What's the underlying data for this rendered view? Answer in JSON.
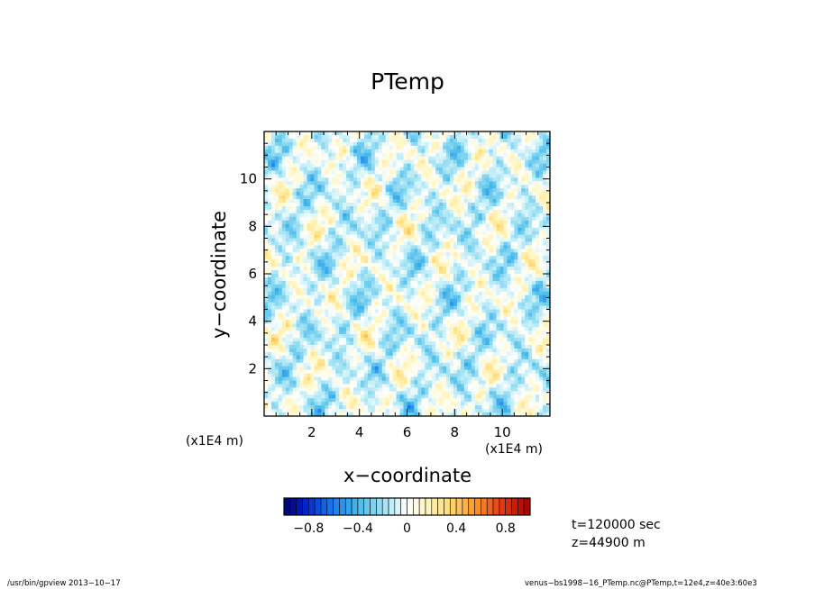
{
  "chart_data": {
    "type": "heatmap",
    "title": "PTemp",
    "xlabel": "x−coordinate",
    "ylabel": "y−coordinate",
    "x_multiplier": "(x1E4 m)",
    "y_multiplier": "(x1E4 m)",
    "xlim": [
      0,
      12
    ],
    "ylim": [
      0,
      12
    ],
    "x_ticks": [
      "2",
      "4",
      "6",
      "8",
      "10"
    ],
    "y_ticks": [
      "2",
      "4",
      "6",
      "8",
      "10"
    ],
    "colorbar": {
      "range": [
        -1.0,
        1.0
      ],
      "tick_labels": [
        "−0.8",
        "−0.4",
        "0",
        "0.4",
        "0.8"
      ],
      "tick_values": [
        -0.8,
        -0.4,
        0,
        0.4,
        0.8
      ]
    },
    "annotations": {
      "time": "t=120000 sec",
      "height": "z=44900 m"
    }
  },
  "footer": {
    "left": "/usr/bin/gpview   2013−10−17",
    "right": "venus−bs1998−16_PTemp.nc@PTemp,t=12e4,z=40e3:60e3"
  }
}
